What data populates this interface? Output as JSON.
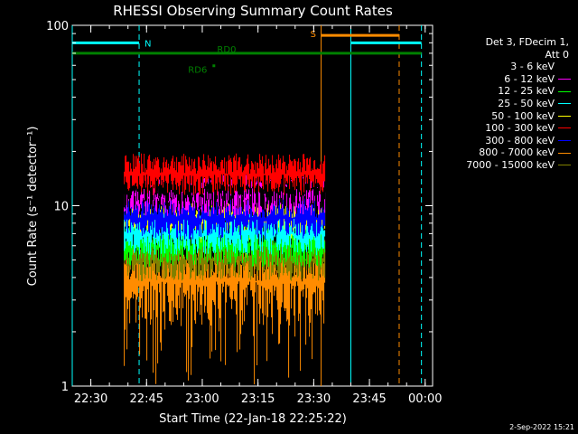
{
  "chart_data": {
    "type": "line",
    "title": "RHESSI Observing Summary Count Rates",
    "xlabel": "Start Time (22-Jan-18 22:25:22)",
    "ylabel": "Count Rate (s⁻¹ detector⁻¹)",
    "yscale": "log",
    "ylim": [
      1,
      100
    ],
    "xlim_minutes_after_2225": [
      0,
      97
    ],
    "x_ticks": [
      "22:30",
      "22:45",
      "23:00",
      "23:15",
      "23:30",
      "23:45",
      "00:00"
    ],
    "y_ticks": [
      "1",
      "10",
      "100"
    ],
    "legend_header": [
      "Det 3, FDecim 1,",
      "Att 0"
    ],
    "grid": false,
    "data_start_time": "22:39",
    "data_end_time": "23:33",
    "series": [
      {
        "name": "3 - 6 keV",
        "color": "#000000",
        "level": 12.5
      },
      {
        "name": "6 - 12 keV",
        "color": "#ff00ff",
        "level": 11.5
      },
      {
        "name": "12 - 25 keV",
        "color": "#00ff00",
        "level": 6.0
      },
      {
        "name": "25 - 50 keV",
        "color": "#00ffff",
        "level": 7.0
      },
      {
        "name": "50 - 100 keV",
        "color": "#ffff00",
        "level": 8.0
      },
      {
        "name": "100 - 300 keV",
        "color": "#ff0000",
        "level": 15.0
      },
      {
        "name": "300 - 800 keV",
        "color": "#0000ff",
        "level": 8.5
      },
      {
        "name": "800 - 7000 keV",
        "color": "#ff8c00",
        "level": 3.8
      },
      {
        "name": "7000 - 15000 keV",
        "color": "#808000",
        "level": 5.0
      }
    ],
    "flag_bars": [
      {
        "label": "N",
        "color": "#00ffff",
        "value": 80,
        "intervals": [
          [
            "22:25",
            "22:43"
          ],
          [
            "23:40",
            "23:59"
          ]
        ]
      },
      {
        "label": "S",
        "color": "#ff8c00",
        "value": 88,
        "intervals": [
          [
            "23:32",
            "23:53"
          ]
        ]
      },
      {
        "label": "RD0",
        "color": "#008000",
        "value": 70,
        "intervals": [
          [
            "22:25",
            "23:59"
          ]
        ]
      },
      {
        "label": "RD6",
        "color": "#008000",
        "value": 60,
        "intervals": [
          [
            "23:03",
            "23:03"
          ]
        ]
      }
    ],
    "vlines": [
      {
        "time": "22:25",
        "color": "#00ffff",
        "style": "solid"
      },
      {
        "time": "22:43",
        "color": "#00ffff",
        "style": "dashed"
      },
      {
        "time": "23:32",
        "color": "#ff8c00",
        "style": "solid"
      },
      {
        "time": "23:40",
        "color": "#00ffff",
        "style": "solid"
      },
      {
        "time": "23:53",
        "color": "#ff8c00",
        "style": "dashed"
      },
      {
        "time": "23:59",
        "color": "#00ffff",
        "style": "dashed"
      }
    ]
  },
  "footer_date": "2-Sep-2022 15:21"
}
